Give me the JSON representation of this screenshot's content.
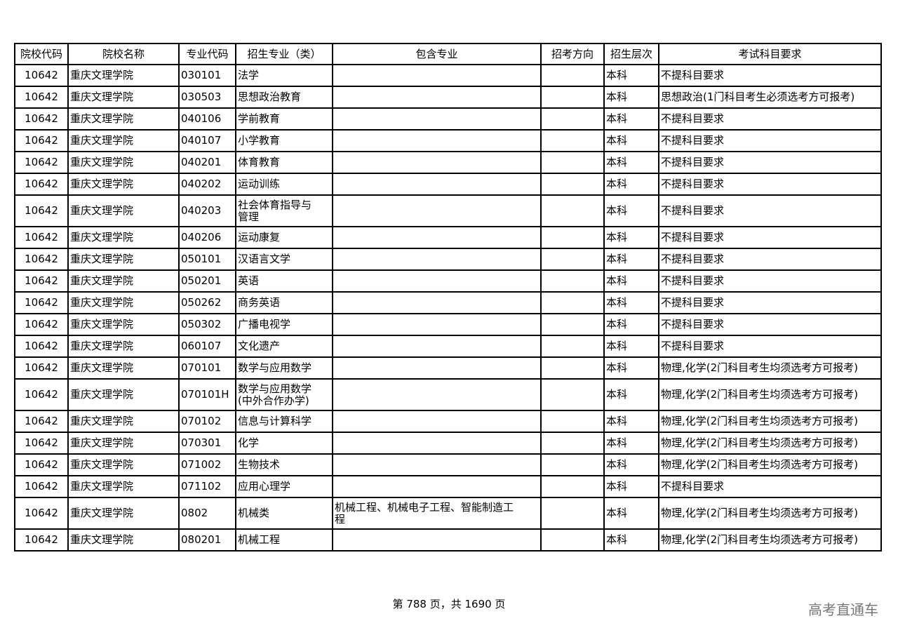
{
  "table": {
    "headers": [
      "院校代码",
      "院校名称",
      "专业代码",
      "招生专业（类）",
      "包含专业",
      "招考方向",
      "招生层次",
      "考试科目要求"
    ],
    "rows": [
      [
        "10642",
        "重庆文理学院",
        "030101",
        "法学",
        "",
        "",
        "本科",
        "不提科目要求"
      ],
      [
        "10642",
        "重庆文理学院",
        "030503",
        "思想政治教育",
        "",
        "",
        "本科",
        "思想政治(1门科目考生必须选考方可报考)"
      ],
      [
        "10642",
        "重庆文理学院",
        "040106",
        "学前教育",
        "",
        "",
        "本科",
        "不提科目要求"
      ],
      [
        "10642",
        "重庆文理学院",
        "040107",
        "小学教育",
        "",
        "",
        "本科",
        "不提科目要求"
      ],
      [
        "10642",
        "重庆文理学院",
        "040201",
        "体育教育",
        "",
        "",
        "本科",
        "不提科目要求"
      ],
      [
        "10642",
        "重庆文理学院",
        "040202",
        "运动训练",
        "",
        "",
        "本科",
        "不提科目要求"
      ],
      [
        "10642",
        "重庆文理学院",
        "040203",
        "社会体育指导与\n管理",
        "",
        "",
        "本科",
        "不提科目要求"
      ],
      [
        "10642",
        "重庆文理学院",
        "040206",
        "运动康复",
        "",
        "",
        "本科",
        "不提科目要求"
      ],
      [
        "10642",
        "重庆文理学院",
        "050101",
        "汉语言文学",
        "",
        "",
        "本科",
        "不提科目要求"
      ],
      [
        "10642",
        "重庆文理学院",
        "050201",
        "英语",
        "",
        "",
        "本科",
        "不提科目要求"
      ],
      [
        "10642",
        "重庆文理学院",
        "050262",
        "商务英语",
        "",
        "",
        "本科",
        "不提科目要求"
      ],
      [
        "10642",
        "重庆文理学院",
        "050302",
        "广播电视学",
        "",
        "",
        "本科",
        "不提科目要求"
      ],
      [
        "10642",
        "重庆文理学院",
        "060107",
        "文化遗产",
        "",
        "",
        "本科",
        "不提科目要求"
      ],
      [
        "10642",
        "重庆文理学院",
        "070101",
        "数学与应用数学",
        "",
        "",
        "本科",
        "物理,化学(2门科目考生均须选考方可报考)"
      ],
      [
        "10642",
        "重庆文理学院",
        "070101H",
        "数学与应用数学\n(中外合作办学)",
        "",
        "",
        "本科",
        "物理,化学(2门科目考生均须选考方可报考)"
      ],
      [
        "10642",
        "重庆文理学院",
        "070102",
        "信息与计算科学",
        "",
        "",
        "本科",
        "物理,化学(2门科目考生均须选考方可报考)"
      ],
      [
        "10642",
        "重庆文理学院",
        "070301",
        "化学",
        "",
        "",
        "本科",
        "物理,化学(2门科目考生均须选考方可报考)"
      ],
      [
        "10642",
        "重庆文理学院",
        "071002",
        "生物技术",
        "",
        "",
        "本科",
        "物理,化学(2门科目考生均须选考方可报考)"
      ],
      [
        "10642",
        "重庆文理学院",
        "071102",
        "应用心理学",
        "",
        "",
        "本科",
        "不提科目要求"
      ],
      [
        "10642",
        "重庆文理学院",
        "0802",
        "机械类",
        "机械工程、机械电子工程、智能制造工\n程",
        "",
        "本科",
        "物理,化学(2门科目考生均须选考方可报考)"
      ],
      [
        "10642",
        "重庆文理学院",
        "080201",
        "机械工程",
        "",
        "",
        "本科",
        "物理,化学(2门科目考生均须选考方可报考)"
      ]
    ]
  },
  "footer": {
    "page_info": "第 788 页，共 1690 页"
  },
  "watermark": "高考直通车"
}
